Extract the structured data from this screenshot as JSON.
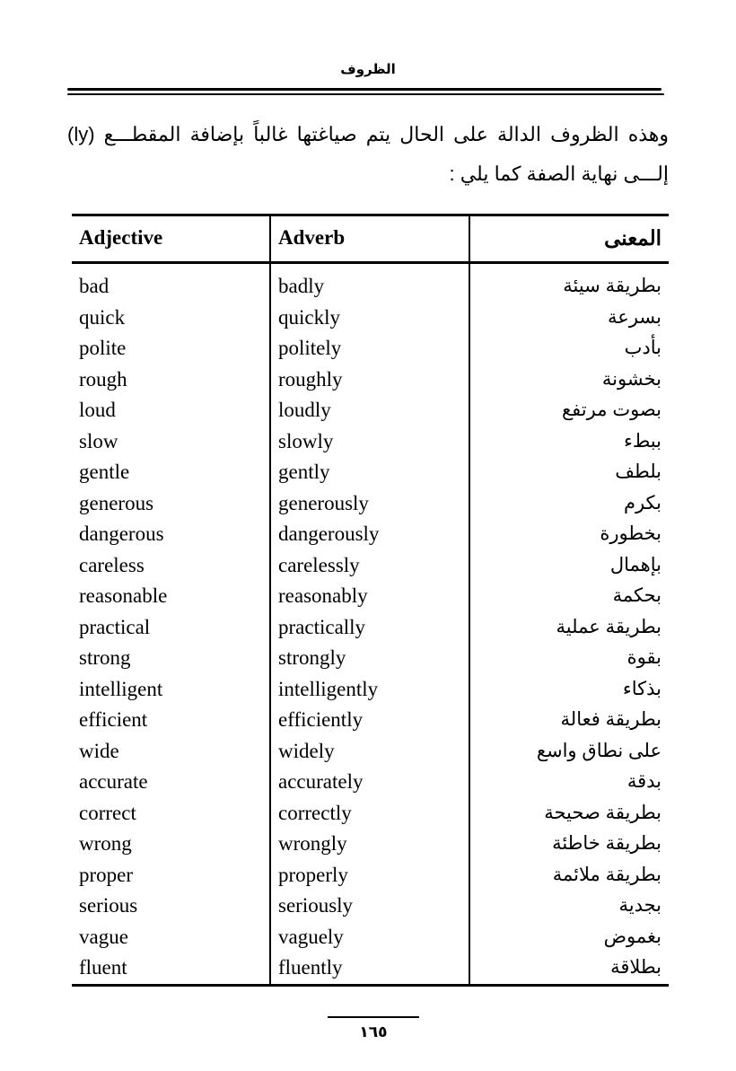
{
  "header": {
    "title": "الظروف"
  },
  "intro": "وهذه الظروف الدالة على الحال يتم صياغتها غالباً بإضافة المقطـــع (ly) إلـــى نهاية الصفة كما يلي :",
  "table": {
    "headers": [
      "Adjective",
      "Adverb",
      "المعنى"
    ],
    "rows": [
      [
        "bad",
        "badly",
        "بطريقة سيئة"
      ],
      [
        "quick",
        "quickly",
        "بسرعة"
      ],
      [
        "polite",
        "politely",
        "بأدب"
      ],
      [
        "rough",
        "roughly",
        "بخشونة"
      ],
      [
        "loud",
        "loudly",
        "بصوت مرتفع"
      ],
      [
        "slow",
        "slowly",
        "ببطء"
      ],
      [
        "gentle",
        "gently",
        "بلطف"
      ],
      [
        "generous",
        "generously",
        "بكرم"
      ],
      [
        "dangerous",
        "dangerously",
        "بخطورة"
      ],
      [
        "careless",
        "carelessly",
        "بإهمال"
      ],
      [
        "reasonable",
        "reasonably",
        "بحكمة"
      ],
      [
        "practical",
        "practically",
        "بطريقة عملية"
      ],
      [
        "strong",
        "strongly",
        "بقوة"
      ],
      [
        "intelligent",
        "intelligently",
        "بذكاء"
      ],
      [
        "efficient",
        "efficiently",
        "بطريقة فعالة"
      ],
      [
        "wide",
        "widely",
        "على نطاق واسع"
      ],
      [
        "accurate",
        "accurately",
        "بدقة"
      ],
      [
        "correct",
        "correctly",
        "بطريقة صحيحة"
      ],
      [
        "wrong",
        "wrongly",
        "بطريقة خاطئة"
      ],
      [
        "proper",
        "properly",
        "بطريقة ملائمة"
      ],
      [
        "serious",
        "seriously",
        "بجدية"
      ],
      [
        "vague",
        "vaguely",
        "بغموض"
      ],
      [
        "fluent",
        "fluently",
        "بطلاقة"
      ]
    ]
  },
  "footer": {
    "page_number": "١٦٥"
  }
}
